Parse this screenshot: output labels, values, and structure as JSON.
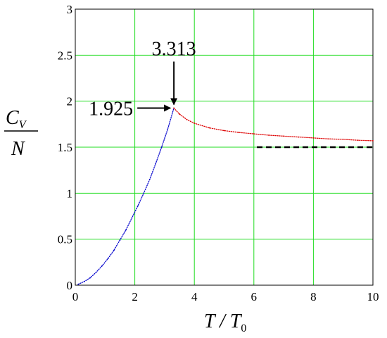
{
  "chart_data": {
    "type": "scatter",
    "title": "",
    "xlabel": "T / T0",
    "ylabel": "CV / N",
    "xlim": [
      0,
      10
    ],
    "ylim": [
      0,
      3
    ],
    "x_ticks": [
      "0",
      "2",
      "4",
      "6",
      "8",
      "10"
    ],
    "y_ticks": [
      "0",
      "0.5",
      "1",
      "1.5",
      "2",
      "2.5",
      "3"
    ],
    "grid": true,
    "grid_color": "#22dd22",
    "series": [
      {
        "color": "#0000cc",
        "style": "dots",
        "x": [
          0.1,
          0.3,
          0.5,
          0.7,
          0.9,
          1.1,
          1.3,
          1.5,
          1.7,
          1.9,
          2.1,
          2.3,
          2.5,
          2.7,
          2.9,
          3.1,
          3.313
        ],
        "y": [
          0.01,
          0.04,
          0.08,
          0.14,
          0.21,
          0.29,
          0.38,
          0.49,
          0.6,
          0.73,
          0.86,
          1.0,
          1.15,
          1.32,
          1.5,
          1.69,
          1.925
        ]
      },
      {
        "color": "#dd0000",
        "style": "dots",
        "x": [
          3.313,
          3.5,
          3.75,
          4.0,
          4.5,
          5.0,
          5.5,
          6.0,
          6.5,
          7.0,
          7.5,
          8.0,
          8.5,
          9.0,
          9.5,
          10.0
        ],
        "y": [
          1.925,
          1.86,
          1.8,
          1.76,
          1.71,
          1.68,
          1.66,
          1.645,
          1.63,
          1.62,
          1.61,
          1.6,
          1.59,
          1.585,
          1.575,
          1.57
        ]
      }
    ],
    "reference_line": {
      "y": 1.5,
      "x_start": 6.1,
      "x_end": 10,
      "style": "dashed",
      "color": "#000000"
    },
    "annotations": [
      {
        "text": "3.313",
        "x": 3.313,
        "y": 1.925,
        "arrow": "down"
      },
      {
        "text": "1.925",
        "x": 3.313,
        "y": 1.925,
        "arrow": "right"
      }
    ]
  }
}
